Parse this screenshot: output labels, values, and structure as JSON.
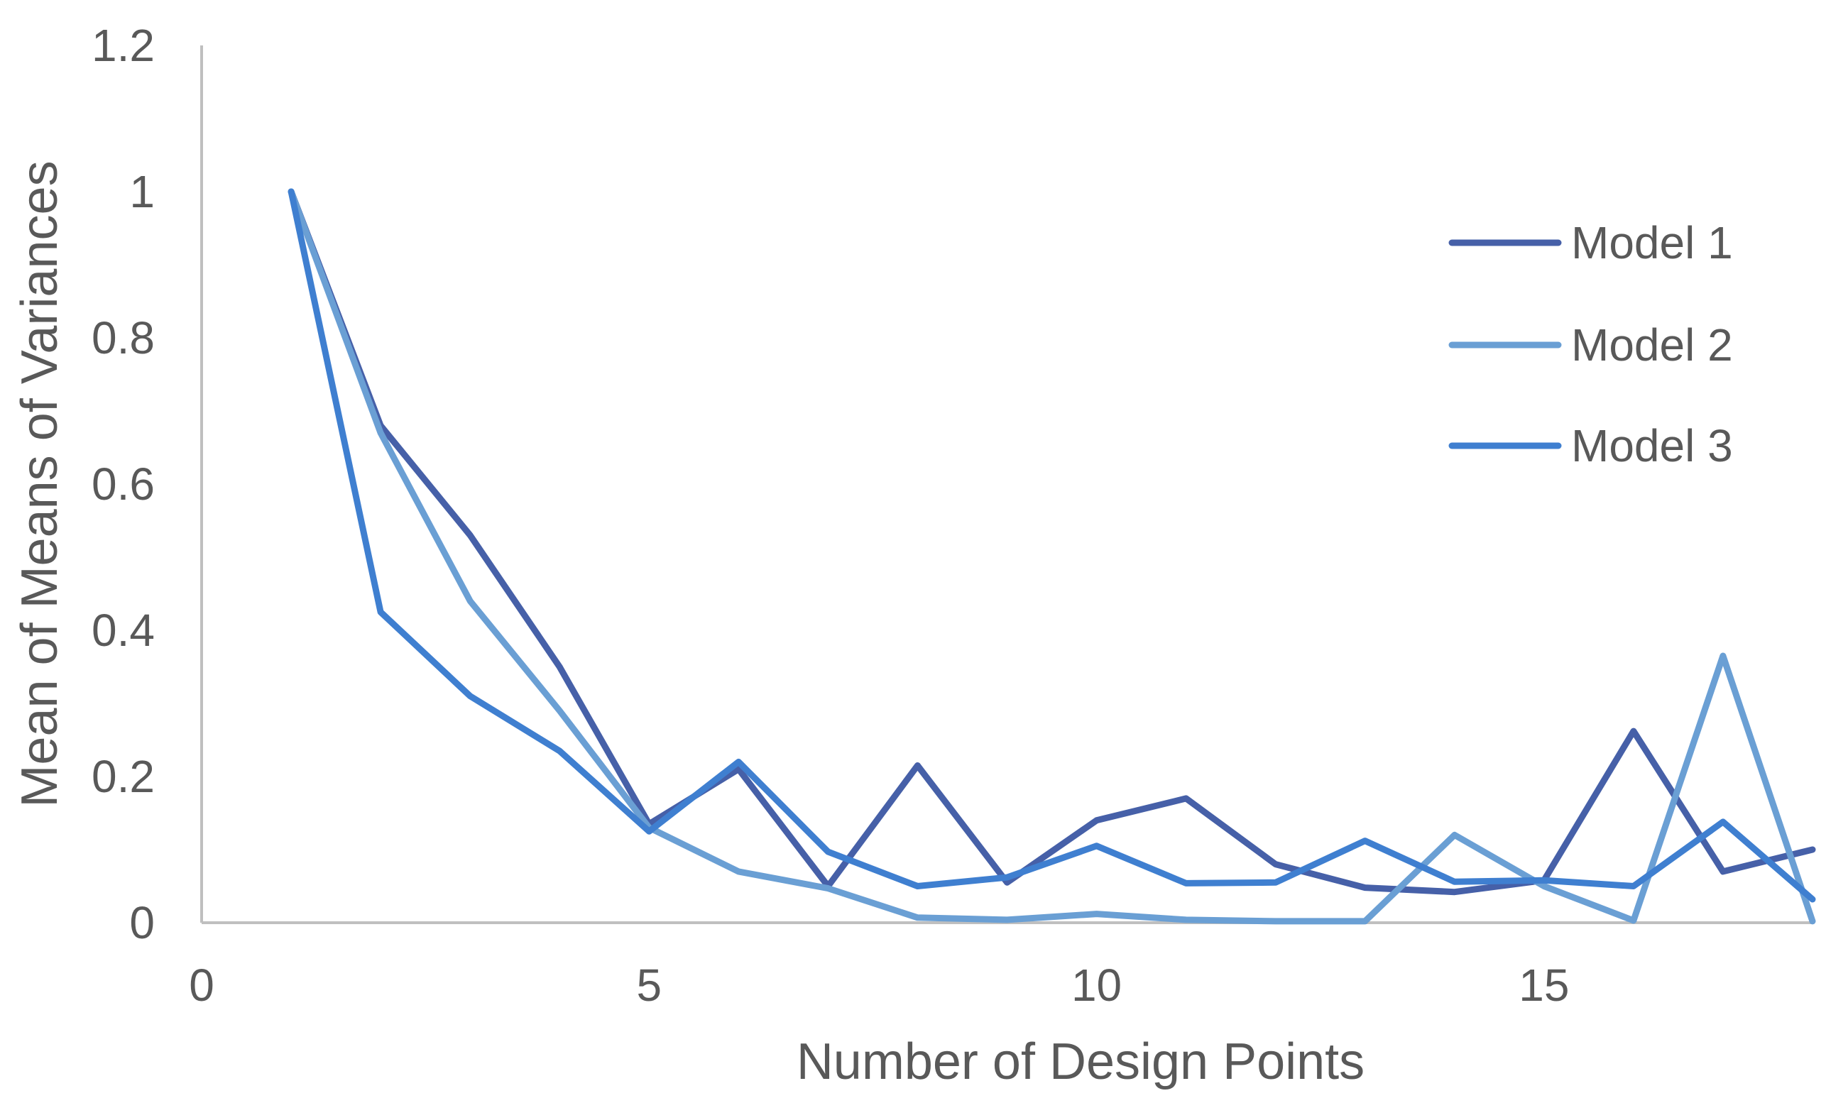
{
  "chart_data": {
    "type": "line",
    "title": "",
    "xlabel": "Number of Design Points",
    "ylabel": "Mean of Means of Variances",
    "xlim": [
      0,
      18
    ],
    "ylim": [
      0,
      1.2
    ],
    "x_ticks": [
      0,
      5,
      10,
      15
    ],
    "x_tick_labels": [
      "0",
      "5",
      "10",
      "15"
    ],
    "y_ticks": [
      0,
      0.2,
      0.4,
      0.6,
      0.8,
      1,
      1.2
    ],
    "y_tick_labels": [
      "0",
      "0.2",
      "0.4",
      "0.6",
      "0.8",
      "1",
      "1.2"
    ],
    "grid": false,
    "legend_position": "right",
    "x": [
      1,
      2,
      3,
      4,
      5,
      6,
      7,
      8,
      9,
      10,
      11,
      12,
      13,
      14,
      15,
      16,
      17,
      18
    ],
    "series": [
      {
        "name": "Model 1",
        "color": "#4660a8",
        "values": [
          1.0,
          0.68,
          0.53,
          0.35,
          0.135,
          0.21,
          0.05,
          0.215,
          0.055,
          0.14,
          0.17,
          0.08,
          0.048,
          0.042,
          0.058,
          0.262,
          0.07,
          0.1
        ]
      },
      {
        "name": "Model 2",
        "color": "#6a9fd4",
        "values": [
          1.0,
          0.67,
          0.44,
          0.29,
          0.13,
          0.07,
          0.047,
          0.007,
          0.004,
          0.012,
          0.004,
          0.002,
          0.002,
          0.12,
          0.05,
          0.003,
          0.365,
          0.002
        ]
      },
      {
        "name": "Model 3",
        "color": "#3f7fd0",
        "values": [
          1.0,
          0.425,
          0.31,
          0.235,
          0.125,
          0.22,
          0.097,
          0.05,
          0.062,
          0.105,
          0.054,
          0.055,
          0.112,
          0.056,
          0.058,
          0.05,
          0.138,
          0.032
        ]
      }
    ]
  }
}
